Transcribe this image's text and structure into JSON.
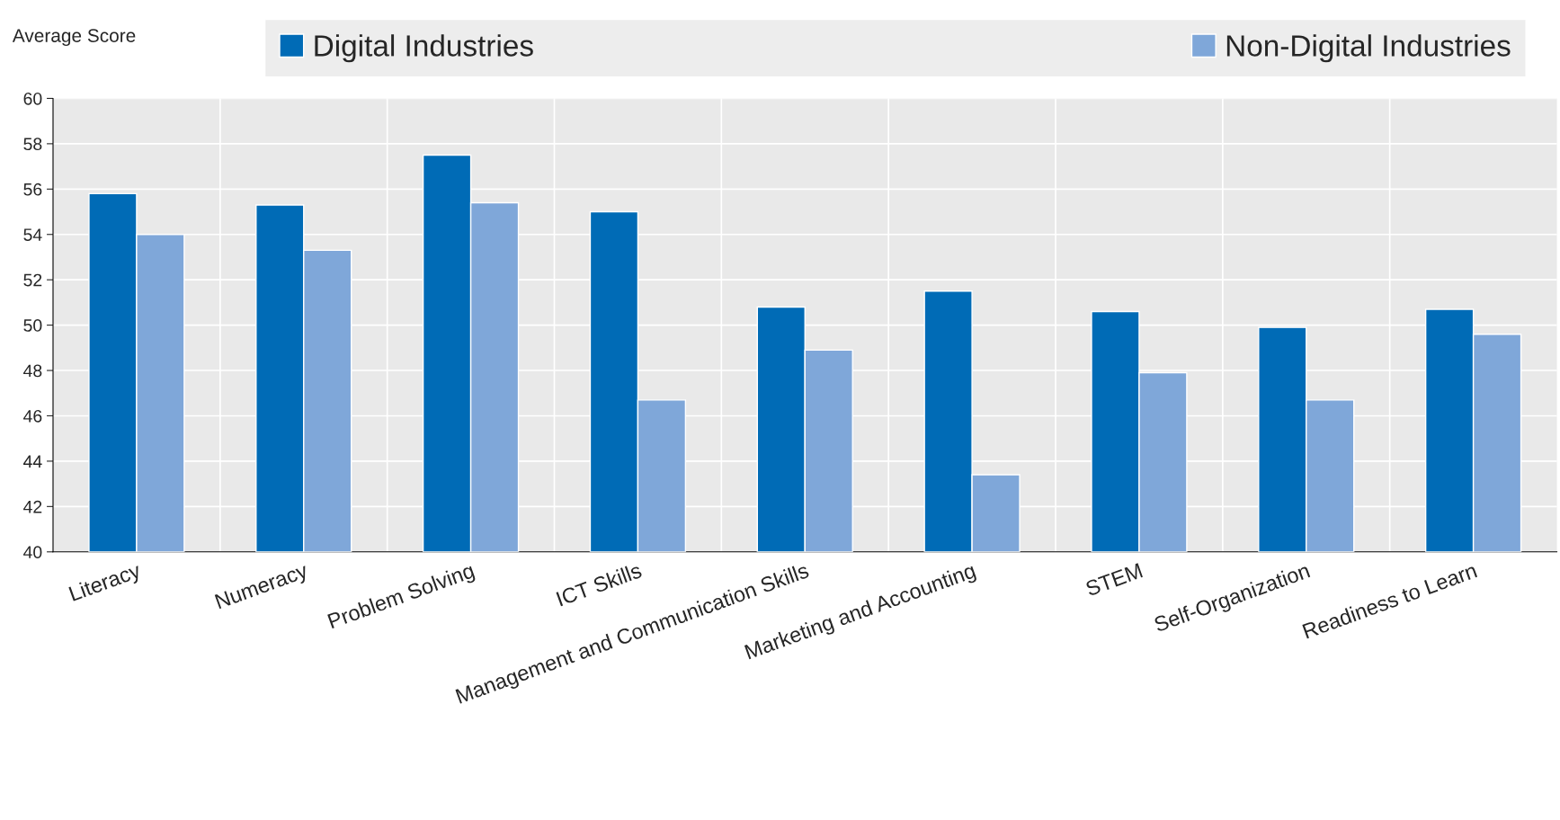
{
  "chart_data": {
    "type": "bar",
    "ylabel": "Average Score",
    "categories": [
      "Literacy",
      "Numeracy",
      "Problem Solving",
      "ICT Skills",
      "Management and Communication Skills",
      "Marketing and Accounting",
      "STEM",
      "Self-Organization",
      "Readiness to Learn"
    ],
    "series": [
      {
        "name": "Digital Industries",
        "color": "#006bb6",
        "values": [
          55.8,
          55.3,
          57.5,
          55.0,
          50.8,
          51.5,
          50.6,
          49.9,
          50.7
        ]
      },
      {
        "name": "Non-Digital Industries",
        "color": "#7fa7d9",
        "values": [
          54.0,
          53.3,
          55.4,
          46.7,
          48.9,
          43.4,
          47.9,
          46.7,
          49.6
        ]
      }
    ],
    "ylim": [
      40,
      60
    ],
    "yticks": [
      40,
      42,
      44,
      46,
      48,
      50,
      52,
      54,
      56,
      58,
      60
    ],
    "grid": true,
    "legend": "top"
  }
}
